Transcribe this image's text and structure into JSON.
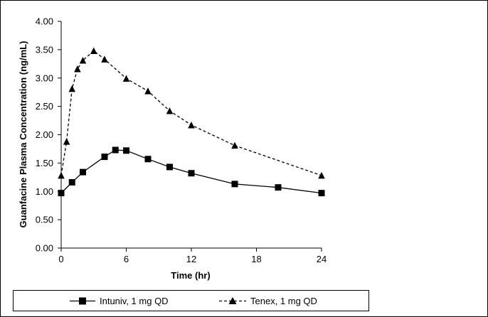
{
  "chart_data": {
    "type": "line",
    "title": "",
    "xlabel": "Time (hr)",
    "ylabel": "Guanfacine Plasma Concentration (ng/mL)",
    "xlim": [
      0,
      24
    ],
    "ylim": [
      0,
      4
    ],
    "xticks": [
      0,
      6,
      12,
      18,
      24
    ],
    "xtick_labels": [
      "0",
      "6",
      "12",
      "18",
      "24"
    ],
    "yticks": [
      0,
      0.5,
      1,
      1.5,
      2,
      2.5,
      3,
      3.5,
      4
    ],
    "ytick_labels": [
      "0.00",
      "0.50",
      "1.00",
      "1.50",
      "2.00",
      "2.50",
      "3.00",
      "3.50",
      "4.00"
    ],
    "grid": false,
    "legend_position": "bottom",
    "series": [
      {
        "name": "Intuniv, 1 mg QD",
        "marker": "square",
        "line_style": "solid",
        "color": "#000000",
        "x": [
          0,
          1,
          2,
          4,
          5,
          6,
          8,
          10,
          12,
          16,
          20,
          24
        ],
        "y": [
          0.97,
          1.16,
          1.34,
          1.61,
          1.73,
          1.72,
          1.57,
          1.43,
          1.32,
          1.13,
          1.07,
          0.97
        ]
      },
      {
        "name": "Tenex, 1 mg QD",
        "marker": "triangle",
        "line_style": "dashed",
        "color": "#000000",
        "x": [
          0,
          0.5,
          1,
          1.5,
          2,
          3,
          4,
          6,
          8,
          10,
          12,
          16,
          24
        ],
        "y": [
          1.28,
          1.88,
          2.81,
          3.16,
          3.31,
          3.48,
          3.33,
          2.99,
          2.77,
          2.42,
          2.17,
          1.81,
          1.28
        ]
      }
    ]
  }
}
